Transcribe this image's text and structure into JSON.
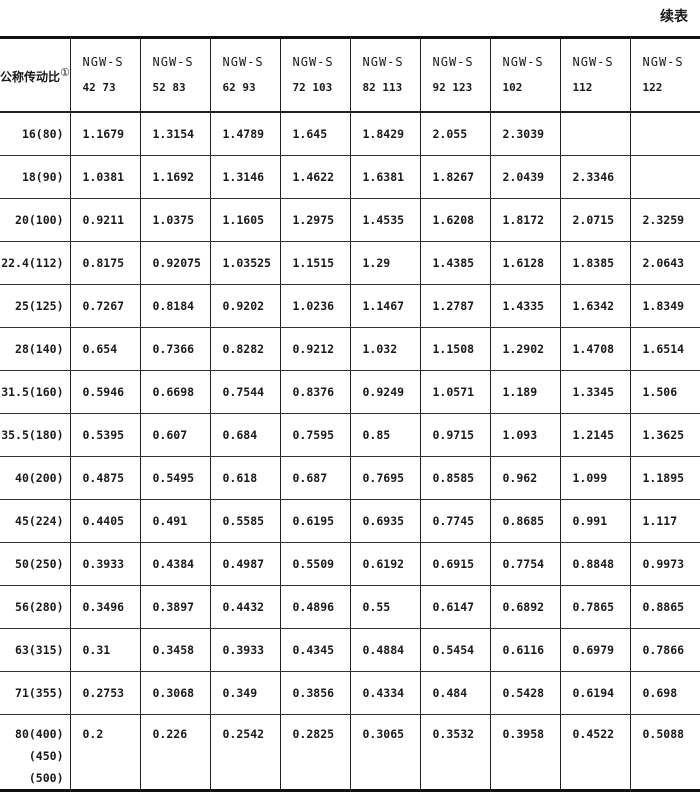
{
  "continued_label": "续表",
  "table": {
    "row_header": "公称传动比",
    "row_header_note": "①",
    "columns": [
      {
        "name": "NGW-S",
        "size": "42  73"
      },
      {
        "name": "NGW-S",
        "size": "52  83"
      },
      {
        "name": "NGW-S",
        "size": "62  93"
      },
      {
        "name": "NGW-S",
        "size": "72  103"
      },
      {
        "name": "NGW-S",
        "size": "82  113"
      },
      {
        "name": "NGW-S",
        "size": "92  123"
      },
      {
        "name": "NGW-S",
        "size": "102"
      },
      {
        "name": "NGW-S",
        "size": "112"
      },
      {
        "name": "NGW-S",
        "size": "122"
      }
    ],
    "rows": [
      {
        "ratio": "16(80)",
        "values": [
          "1.1679",
          "1.3154",
          "1.4789",
          "1.645",
          "1.8429",
          "2.055",
          "2.3039",
          "",
          ""
        ]
      },
      {
        "ratio": "18(90)",
        "values": [
          "1.0381",
          "1.1692",
          "1.3146",
          "1.4622",
          "1.6381",
          "1.8267",
          "2.0439",
          "2.3346",
          ""
        ]
      },
      {
        "ratio": "20(100)",
        "values": [
          "0.9211",
          "1.0375",
          "1.1605",
          "1.2975",
          "1.4535",
          "1.6208",
          "1.8172",
          "2.0715",
          "2.3259"
        ]
      },
      {
        "ratio": "22.4(112)",
        "values": [
          "0.8175",
          "0.92075",
          "1.03525",
          "1.1515",
          "1.29",
          "1.4385",
          "1.6128",
          "1.8385",
          "2.0643"
        ]
      },
      {
        "ratio": "25(125)",
        "values": [
          "0.7267",
          "0.8184",
          "0.9202",
          "1.0236",
          "1.1467",
          "1.2787",
          "1.4335",
          "1.6342",
          "1.8349"
        ]
      },
      {
        "ratio": "28(140)",
        "values": [
          "0.654",
          "0.7366",
          "0.8282",
          "0.9212",
          "1.032",
          "1.1508",
          "1.2902",
          "1.4708",
          "1.6514"
        ]
      },
      {
        "ratio": "31.5(160)",
        "values": [
          "0.5946",
          "0.6698",
          "0.7544",
          "0.8376",
          "0.9249",
          "1.0571",
          "1.189",
          "1.3345",
          "1.506"
        ]
      },
      {
        "ratio": "35.5(180)",
        "values": [
          "0.5395",
          "0.607",
          "0.684",
          "0.7595",
          "0.85",
          "0.9715",
          "1.093",
          "1.2145",
          "1.3625"
        ]
      },
      {
        "ratio": "40(200)",
        "values": [
          "0.4875",
          "0.5495",
          "0.618",
          "0.687",
          "0.7695",
          "0.8585",
          "0.962",
          "1.099",
          "1.1895"
        ]
      },
      {
        "ratio": "45(224)",
        "values": [
          "0.4405",
          "0.491",
          "0.5585",
          "0.6195",
          "0.6935",
          "0.7745",
          "0.8685",
          "0.991",
          "1.117"
        ]
      },
      {
        "ratio": "50(250)",
        "values": [
          "0.3933",
          "0.4384",
          "0.4987",
          "0.5509",
          "0.6192",
          "0.6915",
          "0.7754",
          "0.8848",
          "0.9973"
        ]
      },
      {
        "ratio": "56(280)",
        "values": [
          "0.3496",
          "0.3897",
          "0.4432",
          "0.4896",
          "0.55",
          "0.6147",
          "0.6892",
          "0.7865",
          "0.8865"
        ]
      },
      {
        "ratio": "63(315)",
        "values": [
          "0.31",
          "0.3458",
          "0.3933",
          "0.4345",
          "0.4884",
          "0.5454",
          "0.6116",
          "0.6979",
          "0.7866"
        ]
      },
      {
        "ratio": "71(355)",
        "values": [
          "0.2753",
          "0.3068",
          "0.349",
          "0.3856",
          "0.4334",
          "0.484",
          "0.5428",
          "0.6194",
          "0.698"
        ]
      },
      {
        "ratio": "80(400)",
        "ratio_extra": [
          "(450)",
          "(500)"
        ],
        "values": [
          "0.2",
          "0.226",
          "0.2542",
          "0.2825",
          "0.3065",
          "0.3532",
          "0.3958",
          "0.4522",
          "0.5088"
        ]
      }
    ]
  }
}
